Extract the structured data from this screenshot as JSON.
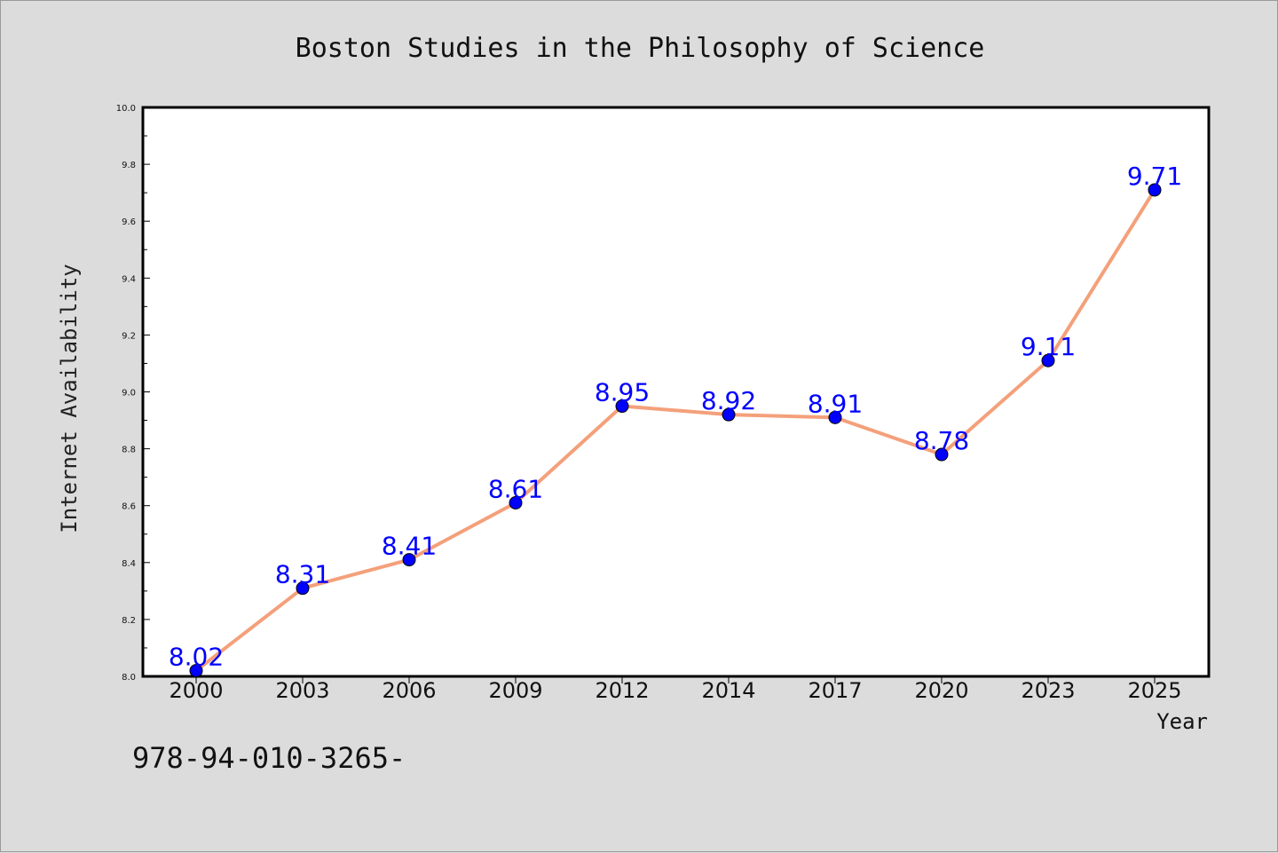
{
  "chart_data": {
    "type": "line",
    "title": "Boston Studies in the Philosophy of Science",
    "xlabel": "Year",
    "ylabel": "Internet Availability",
    "categories": [
      "2000",
      "2003",
      "2006",
      "2009",
      "2012",
      "2014",
      "2017",
      "2020",
      "2023",
      "2025"
    ],
    "series": [
      {
        "values": [
          8.02,
          8.31,
          8.41,
          8.61,
          8.95,
          8.92,
          8.91,
          8.78,
          9.11,
          9.71
        ],
        "labels": [
          "8.02",
          "8.31",
          "8.41",
          "8.61",
          "8.95",
          "8.92",
          "8.91",
          "8.78",
          "9.11",
          "9.71"
        ],
        "line_color": "#f4a07a",
        "marker_color": "#0000ff"
      }
    ],
    "ylim": [
      8.0,
      10.0
    ],
    "yticks": [
      "8.0",
      "8.2",
      "8.4",
      "8.6",
      "8.8",
      "9.0",
      "9.2",
      "9.4",
      "9.6",
      "9.8",
      "10.0"
    ],
    "grid": false,
    "legend": "none",
    "data_labels": true
  },
  "footer_text": "978-94-010-3265-",
  "colors": {
    "background": "#dcdcdc",
    "plot_background": "#ffffff",
    "line": "#f4a07a",
    "marker": "#0000ff",
    "data_label": "#0000ff"
  }
}
